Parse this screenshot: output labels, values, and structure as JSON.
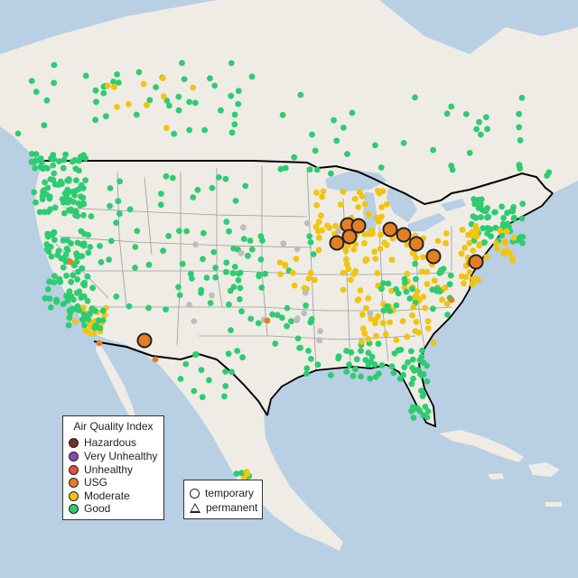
{
  "colors": {
    "ocean": "#b9cfe3",
    "land": "#efece6",
    "lakes": "#b9cfe3",
    "border": "#000000",
    "state_lines": "#9a9a9a",
    "good": "#2ecc71",
    "moderate": "#f1c40f",
    "usg": "#e67e22",
    "unhealthy": "#e74c3c",
    "very_unhealthy": "#8e44ad",
    "hazardous": "#6e2c2c",
    "no_data": "#bdbdbd"
  },
  "legend": {
    "title": "Air Quality Index",
    "items": [
      {
        "label": "Hazardous",
        "color": "#7a2e2e"
      },
      {
        "label": "Very Unhealthy",
        "color": "#8e44ad"
      },
      {
        "label": "Unhealthy",
        "color": "#e74c3c"
      },
      {
        "label": "USG",
        "color": "#e67e22"
      },
      {
        "label": "Moderate",
        "color": "#f1c40f"
      },
      {
        "label": "Good",
        "color": "#2ecc71"
      }
    ]
  },
  "monitor_types": {
    "temporary": "temporary",
    "permanent": "permanent"
  }
}
